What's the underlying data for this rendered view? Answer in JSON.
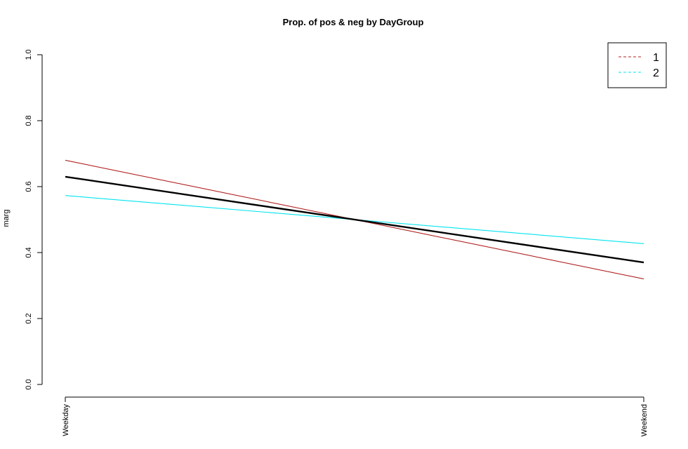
{
  "chart_data": {
    "type": "line",
    "title": "Prop. of pos & neg by DayGroup",
    "xlabel": "",
    "ylabel": "marg",
    "categories": [
      "Weekday",
      "Weekend"
    ],
    "ylim": [
      0,
      1
    ],
    "yticks": [
      "0.0",
      "0.2",
      "0.4",
      "0.6",
      "0.8",
      "1.0"
    ],
    "grid": false,
    "legend_position": "top-right",
    "series": [
      {
        "name": "1",
        "color": "#b22222",
        "values": [
          0.68,
          0.32
        ],
        "in_legend": true
      },
      {
        "name": "2",
        "color": "#00e5ee",
        "values": [
          0.573,
          0.427
        ],
        "in_legend": true
      },
      {
        "color": "#000000",
        "values": [
          0.63,
          0.37
        ],
        "in_legend": false
      }
    ]
  }
}
